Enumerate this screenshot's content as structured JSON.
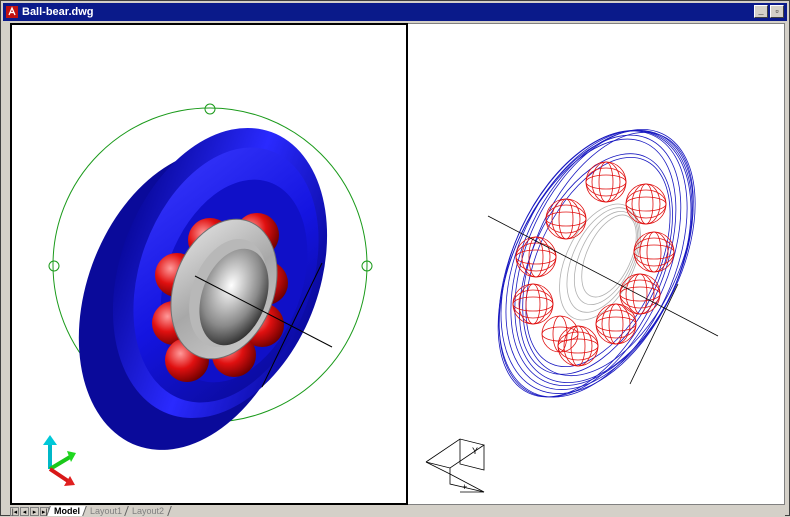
{
  "window": {
    "title": "Ball-bear.dwg",
    "minimize_label": "_",
    "restore_label": "▫"
  },
  "colors": {
    "titlebar": "#0a1a8a",
    "bearing_blue": "#1a1af0",
    "ball_red": "#e01010",
    "grip_green": "#1a9a1a"
  },
  "tabs": [
    {
      "label": "Model",
      "active": true
    },
    {
      "label": "Layout1",
      "active": false
    },
    {
      "label": "Layout2",
      "active": false
    }
  ],
  "nav_buttons": [
    "|◂",
    "◂",
    "▸",
    "▸|"
  ],
  "viewports": {
    "left": {
      "mode": "shaded",
      "icon": "ucs-3d-axes-icon"
    },
    "right": {
      "mode": "wireframe",
      "icon": "ucs-wireframe-icon"
    }
  }
}
